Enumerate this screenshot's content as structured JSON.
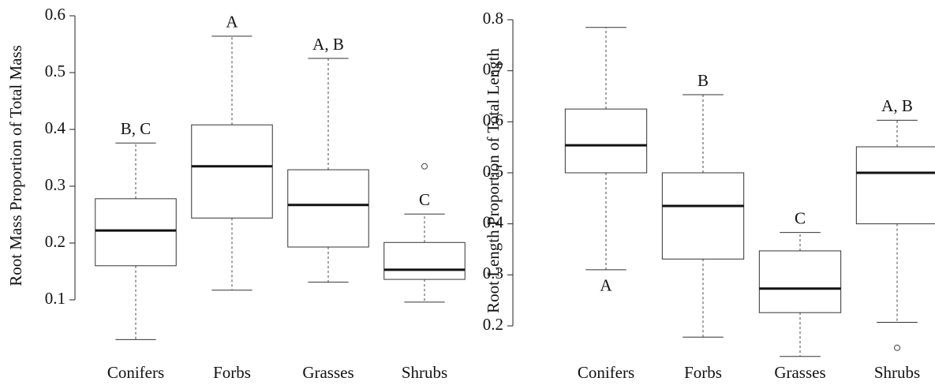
{
  "chart_data": [
    {
      "type": "box",
      "ylabel": "Root Mass Proportion of Total Mass",
      "categories": [
        "Conifers",
        "Forbs",
        "Grasses",
        "Shrubs"
      ],
      "boxes": [
        {
          "min": 0.03,
          "q1": 0.16,
          "median": 0.222,
          "q3": 0.278,
          "max": 0.376,
          "outliers": []
        },
        {
          "min": 0.117,
          "q1": 0.244,
          "median": 0.335,
          "q3": 0.408,
          "max": 0.564,
          "outliers": []
        },
        {
          "min": 0.131,
          "q1": 0.193,
          "median": 0.267,
          "q3": 0.329,
          "max": 0.525,
          "outliers": []
        },
        {
          "min": 0.096,
          "q1": 0.136,
          "median": 0.153,
          "q3": 0.201,
          "max": 0.251,
          "outliers": [
            0.335
          ]
        }
      ],
      "annotations": [
        {
          "text": "B, C",
          "side": "top"
        },
        {
          "text": "A",
          "side": "top"
        },
        {
          "text": "A, B",
          "side": "top"
        },
        {
          "text": "C",
          "side": "top"
        }
      ],
      "ylim": [
        0.03,
        0.6
      ],
      "yticks": [
        0.1,
        0.2,
        0.3,
        0.4,
        0.5,
        0.6
      ],
      "color": "#333333"
    },
    {
      "type": "box",
      "ylabel": "Root Length Proportion of Total Length",
      "categories": [
        "Conifers",
        "Forbs",
        "Grasses",
        "Shrubs"
      ],
      "boxes": [
        {
          "min": 0.31,
          "q1": 0.5,
          "median": 0.554,
          "q3": 0.625,
          "max": 0.785,
          "outliers": []
        },
        {
          "min": 0.178,
          "q1": 0.331,
          "median": 0.435,
          "q3": 0.5,
          "max": 0.653,
          "outliers": []
        },
        {
          "min": 0.14,
          "q1": 0.226,
          "median": 0.273,
          "q3": 0.347,
          "max": 0.383,
          "outliers": []
        },
        {
          "min": 0.207,
          "q1": 0.4,
          "median": 0.5,
          "q3": 0.551,
          "max": 0.603,
          "outliers": [
            0.157
          ]
        }
      ],
      "annotations": [
        {
          "text": "A",
          "side": "bottom"
        },
        {
          "text": "B",
          "side": "top"
        },
        {
          "text": "C",
          "side": "top"
        },
        {
          "text": "A, B",
          "side": "top"
        }
      ],
      "ylim": [
        0.14,
        0.8
      ],
      "yticks": [
        0.2,
        0.3,
        0.4,
        0.5,
        0.6,
        0.7,
        0.8
      ],
      "color": "#333333"
    }
  ]
}
